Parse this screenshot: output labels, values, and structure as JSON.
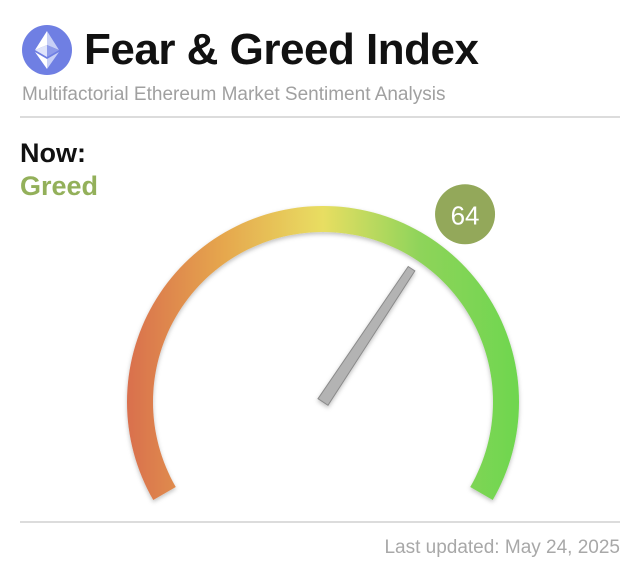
{
  "header": {
    "logo_icon": "ethereum-icon",
    "title": "Fear & Greed Index",
    "subtitle": "Multifactorial Ethereum Market Sentiment Analysis"
  },
  "status": {
    "now_label": "Now:",
    "classification": "Greed",
    "classification_color": "#93b05a"
  },
  "footer": {
    "last_updated": "Last updated: May 24, 2025"
  },
  "chart_data": {
    "type": "gauge",
    "value": 64,
    "value_label": "64",
    "min": 0,
    "max": 100,
    "badge_color": "#93a85a",
    "needle_color": "#b3b3b3",
    "gradient_colors": [
      "#d9704e",
      "#e6a84e",
      "#e8de62",
      "#8ed45a",
      "#6fd64f"
    ]
  }
}
